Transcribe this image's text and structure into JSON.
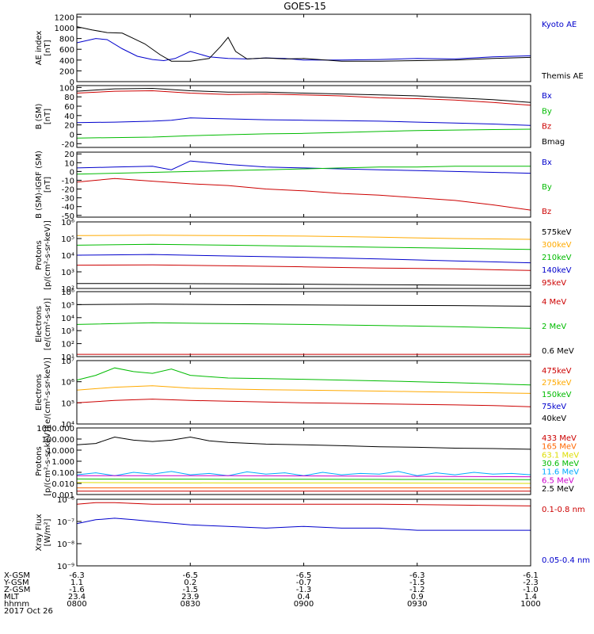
{
  "title": "GOES-15",
  "chart_data": [
    {
      "type": "line",
      "ylabel": [
        "AE index",
        "[nT]"
      ],
      "yticks": [
        "0",
        "200",
        "400",
        "600",
        "800",
        "1000",
        "1200"
      ],
      "ylim": [
        0,
        1250
      ],
      "series": [
        {
          "name": "Kyoto AE",
          "color": "#0000cc",
          "x": [
            0,
            5,
            8,
            12,
            16,
            20,
            23,
            26,
            30,
            35,
            40,
            45,
            50,
            55,
            60,
            70,
            80,
            90,
            100,
            110,
            120
          ],
          "y": [
            720,
            800,
            780,
            610,
            470,
            410,
            390,
            430,
            560,
            460,
            430,
            420,
            440,
            430,
            400,
            400,
            410,
            430,
            420,
            460,
            480
          ]
        },
        {
          "name": "Themis AE",
          "color": "#000000",
          "x": [
            0,
            4,
            8,
            12,
            15,
            18,
            22,
            25,
            30,
            35,
            38,
            40,
            42,
            45,
            50,
            55,
            60,
            70,
            80,
            90,
            100,
            110,
            120
          ],
          "y": [
            1020,
            960,
            910,
            900,
            800,
            700,
            500,
            380,
            380,
            430,
            650,
            820,
            560,
            420,
            440,
            420,
            430,
            380,
            380,
            390,
            400,
            430,
            450
          ]
        }
      ]
    },
    {
      "type": "line",
      "ylabel": [
        "B (SM)",
        "[nT]"
      ],
      "yticks": [
        "-20",
        "0",
        "20",
        "40",
        "60",
        "80",
        "100"
      ],
      "ylim": [
        -28,
        104
      ],
      "series": [
        {
          "name": "Bx",
          "color": "#0000cc",
          "x": [
            0,
            10,
            20,
            25,
            30,
            40,
            50,
            60,
            70,
            80,
            90,
            100,
            110,
            120
          ],
          "y": [
            25,
            26,
            28,
            30,
            35,
            33,
            31,
            30,
            29,
            28,
            26,
            24,
            22,
            19
          ]
        },
        {
          "name": "By",
          "color": "#00bb00",
          "x": [
            0,
            10,
            20,
            30,
            40,
            50,
            60,
            70,
            80,
            90,
            100,
            110,
            120
          ],
          "y": [
            -8,
            -7,
            -6,
            -3,
            -1,
            1,
            2,
            4,
            6,
            8,
            9,
            10,
            11
          ]
        },
        {
          "name": "Bz",
          "color": "#cc0000",
          "x": [
            0,
            10,
            20,
            30,
            40,
            50,
            60,
            70,
            80,
            90,
            100,
            110,
            120
          ],
          "y": [
            88,
            92,
            93,
            88,
            85,
            86,
            84,
            82,
            78,
            76,
            73,
            68,
            62
          ]
        },
        {
          "name": "Bmag",
          "color": "#000000",
          "x": [
            0,
            10,
            20,
            30,
            40,
            50,
            60,
            70,
            80,
            90,
            100,
            110,
            120
          ],
          "y": [
            92,
            97,
            98,
            93,
            90,
            90,
            88,
            86,
            84,
            82,
            78,
            74,
            68
          ]
        }
      ]
    },
    {
      "type": "line",
      "ylabel": [
        "B (SM)-IGRF (SM)",
        "[nT]"
      ],
      "yticks": [
        "-50",
        "-40",
        "-30",
        "-20",
        "-10",
        "0",
        "10",
        "20"
      ],
      "ylim": [
        -52,
        22
      ],
      "series": [
        {
          "name": "Bx",
          "color": "#0000cc",
          "x": [
            0,
            10,
            20,
            25,
            30,
            40,
            50,
            60,
            70,
            80,
            90,
            100,
            110,
            120
          ],
          "y": [
            4,
            5,
            6,
            2,
            12,
            8,
            5,
            4,
            3,
            2,
            1,
            0,
            -1,
            -2
          ]
        },
        {
          "name": "By",
          "color": "#00bb00",
          "x": [
            0,
            10,
            20,
            30,
            40,
            50,
            60,
            70,
            80,
            90,
            100,
            110,
            120
          ],
          "y": [
            -3,
            -2,
            -1,
            0,
            1,
            2,
            3,
            4,
            5,
            5,
            6,
            6,
            6
          ]
        },
        {
          "name": "Bz",
          "color": "#cc0000",
          "x": [
            0,
            5,
            10,
            20,
            30,
            40,
            50,
            60,
            70,
            80,
            90,
            100,
            110,
            120
          ],
          "y": [
            -12,
            -10,
            -8,
            -11,
            -14,
            -16,
            -20,
            -22,
            -25,
            -27,
            -30,
            -33,
            -38,
            -44
          ]
        }
      ]
    },
    {
      "type": "line",
      "logy": true,
      "ylabel": [
        "Protons",
        "[p/(cm²-s-sr-keV)]"
      ],
      "yticks": [
        "10²",
        "10³",
        "10⁴",
        "10⁵",
        "10⁶"
      ],
      "ylim": [
        100,
        1000000
      ],
      "series": [
        {
          "name": "575keV",
          "color": "#000000",
          "x": [
            0,
            20,
            40,
            60,
            80,
            100,
            120
          ],
          "y": [
            200,
            200,
            190,
            180,
            170,
            160,
            150
          ]
        },
        {
          "name": "300keV",
          "color": "#ffaa00",
          "x": [
            0,
            20,
            40,
            60,
            80,
            100,
            120
          ],
          "y": [
            150000,
            160000,
            150000,
            140000,
            120000,
            100000,
            90000
          ]
        },
        {
          "name": "210keV",
          "color": "#00bb00",
          "x": [
            0,
            20,
            40,
            60,
            80,
            100,
            120
          ],
          "y": [
            40000,
            45000,
            40000,
            35000,
            30000,
            26000,
            22000
          ]
        },
        {
          "name": "140keV",
          "color": "#0000cc",
          "x": [
            0,
            20,
            40,
            60,
            80,
            100,
            120
          ],
          "y": [
            10000,
            11000,
            9000,
            7500,
            6000,
            4500,
            3500
          ]
        },
        {
          "name": "95keV",
          "color": "#cc0000",
          "x": [
            0,
            20,
            40,
            60,
            80,
            100,
            120
          ],
          "y": [
            2500,
            2600,
            2300,
            2000,
            1700,
            1500,
            1200
          ]
        }
      ]
    },
    {
      "type": "line",
      "logy": true,
      "ylabel": [
        "Electrons",
        "[e/(cm²-s-sr)]"
      ],
      "yticks": [
        "10¹",
        "10²",
        "10³",
        "10⁴",
        "10⁵",
        "10⁶"
      ],
      "ylim": [
        10,
        1000000
      ],
      "series": [
        {
          "name": "4 MeV",
          "color": "#cc0000",
          "x": [
            0,
            20,
            40,
            60,
            80,
            100,
            120
          ],
          "y": [
            15,
            15,
            15,
            15,
            15,
            15,
            15
          ]
        },
        {
          "name": "2 MeV",
          "color": "#00bb00",
          "x": [
            0,
            20,
            40,
            60,
            80,
            100,
            120
          ],
          "y": [
            3000,
            4000,
            3500,
            3000,
            2500,
            2000,
            1500
          ]
        },
        {
          "name": "0.6 MeV",
          "color": "#000000",
          "x": [
            0,
            20,
            40,
            60,
            80,
            100,
            120
          ],
          "y": [
            100000,
            110000,
            100000,
            95000,
            90000,
            85000,
            75000
          ]
        }
      ]
    },
    {
      "type": "line",
      "logy": true,
      "ylabel": [
        "Electrons",
        "[e/(cm²-s-sr-keV)]"
      ],
      "yticks": [
        "10⁴",
        "10⁵",
        "10⁶",
        "10⁷"
      ],
      "ylim": [
        10000,
        10000000
      ],
      "series": [
        {
          "name": "475keV",
          "color": "#cc0000",
          "x": [
            0,
            10,
            20,
            30,
            40,
            50,
            60,
            70,
            80,
            90,
            100,
            110,
            120
          ],
          "y": [
            100000,
            130000,
            150000,
            130000,
            120000,
            110000,
            100000,
            95000,
            90000,
            85000,
            80000,
            75000,
            65000
          ]
        },
        {
          "name": "275keV",
          "color": "#ffaa00",
          "x": [
            0,
            10,
            20,
            30,
            40,
            50,
            60,
            70,
            80,
            90,
            100,
            110,
            120
          ],
          "y": [
            400000,
            550000,
            650000,
            500000,
            450000,
            420000,
            400000,
            380000,
            360000,
            340000,
            320000,
            300000,
            280000
          ]
        },
        {
          "name": "150keV",
          "color": "#00bb00",
          "x": [
            0,
            5,
            10,
            15,
            20,
            25,
            30,
            40,
            50,
            60,
            70,
            80,
            90,
            100,
            110,
            120
          ],
          "y": [
            1200000,
            2000000,
            4500000,
            3000000,
            2500000,
            4000000,
            2000000,
            1500000,
            1400000,
            1300000,
            1200000,
            1100000,
            1000000,
            900000,
            800000,
            700000
          ]
        },
        {
          "name": "75keV",
          "color": "#0000cc",
          "x": [],
          "y": []
        },
        {
          "name": "40keV",
          "color": "#000000",
          "x": [],
          "y": []
        }
      ]
    },
    {
      "type": "line",
      "logy": true,
      "ylabel": [
        "Protons",
        "[p/(cm²-s-sr-keV)]"
      ],
      "yticks": [
        "0.001",
        "0.010",
        "0.100",
        "1.000",
        "10.000",
        "100.000",
        "1000.000"
      ],
      "ylim": [
        0.001,
        1000
      ],
      "series": [
        {
          "name": "433 MeV",
          "color": "#cc0000",
          "x": [
            0,
            40,
            80,
            120
          ],
          "y": [
            0.002,
            0.002,
            0.002,
            0.002
          ]
        },
        {
          "name": "165 MeV",
          "color": "#ff6600",
          "x": [
            0,
            40,
            80,
            120
          ],
          "y": [
            0.004,
            0.004,
            0.004,
            0.004
          ]
        },
        {
          "name": "63.1 MeV",
          "color": "#dddd00",
          "x": [
            0,
            40,
            80,
            120
          ],
          "y": [
            0.012,
            0.011,
            0.011,
            0.01
          ]
        },
        {
          "name": "30.6 MeV",
          "color": "#00bb00",
          "x": [
            0,
            40,
            80,
            120
          ],
          "y": [
            0.025,
            0.024,
            0.023,
            0.022
          ]
        },
        {
          "name": "11.6 MeV",
          "color": "#00aaff",
          "x": [
            0,
            5,
            10,
            15,
            20,
            25,
            30,
            35,
            40,
            45,
            50,
            55,
            60,
            65,
            70,
            75,
            80,
            85,
            90,
            95,
            100,
            105,
            110,
            115,
            120
          ],
          "y": [
            0.06,
            0.09,
            0.05,
            0.1,
            0.07,
            0.12,
            0.06,
            0.08,
            0.05,
            0.11,
            0.07,
            0.09,
            0.05,
            0.1,
            0.06,
            0.08,
            0.07,
            0.12,
            0.05,
            0.09,
            0.06,
            0.1,
            0.07,
            0.08,
            0.06
          ]
        },
        {
          "name": "6.5 MeV",
          "color": "#cc00cc",
          "x": [
            0,
            40,
            80,
            120
          ],
          "y": [
            0.05,
            0.05,
            0.045,
            0.04
          ]
        },
        {
          "name": "2.5 MeV",
          "color": "#000000",
          "x": [
            0,
            5,
            10,
            15,
            20,
            25,
            30,
            35,
            40,
            50,
            60,
            70,
            80,
            90,
            100,
            110,
            120
          ],
          "y": [
            30,
            40,
            150,
            80,
            60,
            80,
            150,
            70,
            50,
            35,
            30,
            25,
            20,
            18,
            15,
            14,
            12
          ]
        }
      ]
    },
    {
      "type": "line",
      "logy": true,
      "ylabel": [
        "Xray Flux",
        "[W/m²]"
      ],
      "yticks": [
        "10⁻⁹",
        "10⁻⁸",
        "10⁻⁷",
        "10⁻⁶"
      ],
      "ylim": [
        1e-09,
        1e-06
      ],
      "series": [
        {
          "name": "0.1-0.8 nm",
          "color": "#cc0000",
          "x": [
            0,
            5,
            10,
            20,
            40,
            60,
            80,
            100,
            120
          ],
          "y": [
            6e-07,
            7e-07,
            7e-07,
            6e-07,
            6e-07,
            6e-07,
            6e-07,
            5.5e-07,
            5e-07
          ]
        },
        {
          "name": "0.05-0.4 nm",
          "color": "#0000cc",
          "x": [
            0,
            5,
            10,
            15,
            20,
            30,
            40,
            50,
            60,
            70,
            80,
            90,
            100,
            110,
            120
          ],
          "y": [
            8e-08,
            1.2e-07,
            1.4e-07,
            1.2e-07,
            1e-07,
            7e-08,
            6e-08,
            5e-08,
            6e-08,
            5e-08,
            5e-08,
            4e-08,
            4e-08,
            4e-08,
            4e-08
          ]
        }
      ]
    }
  ],
  "x_axis": {
    "tick_x": [
      0,
      30,
      60,
      90,
      120
    ],
    "rows": [
      {
        "label": "X-GSM",
        "values": [
          "-6.3",
          "-6.5",
          "-6.5",
          "-6.3",
          "-6.1"
        ]
      },
      {
        "label": "Y-GSM",
        "values": [
          "1.1",
          "0.2",
          "-0.7",
          "-1.5",
          "-2.3"
        ]
      },
      {
        "label": "Z-GSM",
        "values": [
          "-1.6",
          "-1.5",
          "-1.3",
          "-1.2",
          "-1.0"
        ]
      },
      {
        "label": "MLT",
        "values": [
          "23.4",
          "23.9",
          "0.4",
          "0.9",
          "1.4"
        ]
      },
      {
        "label": "hhmm",
        "values": [
          "0800",
          "0830",
          "0900",
          "0930",
          "1000"
        ]
      }
    ],
    "date": "2017 Oct 26"
  }
}
